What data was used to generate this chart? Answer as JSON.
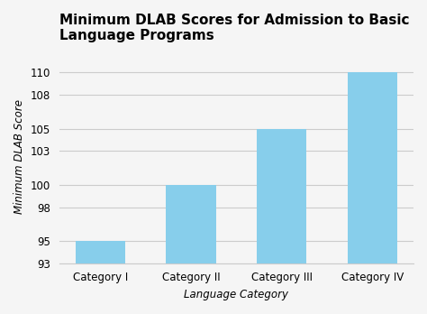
{
  "categories": [
    "Category I",
    "Category II",
    "Category III",
    "Category IV"
  ],
  "values": [
    95,
    100,
    105,
    110
  ],
  "bar_color": "#87CEEB",
  "title": "Minimum DLAB Scores for Admission to Basic\nLanguage Programs",
  "xlabel": "Language Category",
  "ylabel": "Minimum DLAB Score",
  "ylim": [
    93,
    112
  ],
  "yticks": [
    93,
    95,
    98,
    100,
    103,
    105,
    108,
    110
  ],
  "title_fontsize": 11,
  "label_fontsize": 8.5,
  "tick_fontsize": 8.5,
  "background_color": "#f5f5f5",
  "bar_width": 0.55,
  "grid_color": "#cccccc"
}
